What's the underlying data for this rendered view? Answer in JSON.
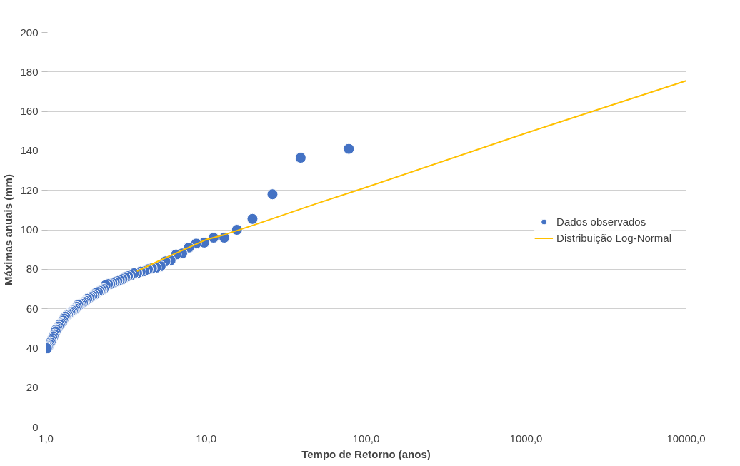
{
  "chart_data": {
    "type": "scatter",
    "xlabel": "Tempo de Retorno (anos)",
    "ylabel": "Máximas anuais (mm)",
    "log": "x",
    "xlim": [
      1,
      10000
    ],
    "xticks": [
      {
        "value": 1,
        "label": "1,0"
      },
      {
        "value": 10,
        "label": "10,0"
      },
      {
        "value": 100,
        "label": "100,0"
      },
      {
        "value": 1000,
        "label": "1000,0"
      },
      {
        "value": 10000,
        "label": "10000,0"
      }
    ],
    "ylim": [
      0,
      200
    ],
    "yticks": [
      0,
      20,
      40,
      60,
      80,
      100,
      120,
      140,
      160,
      180,
      200
    ],
    "grid": "y",
    "legend": "right",
    "marker": "circle",
    "series": [
      {
        "name": "Dados observados",
        "color": "#4472c4",
        "x": [
          78,
          39,
          26,
          19.5,
          15.6,
          13,
          11.14,
          9.75,
          8.67,
          7.8,
          7.09,
          6.5,
          6,
          5.57,
          5.2,
          4.875,
          4.59,
          4.33,
          4.11,
          3.9,
          3.71,
          3.55,
          3.39,
          3.25,
          3.12,
          3,
          2.89,
          2.79,
          2.69,
          2.6,
          2.52,
          2.44,
          2.36,
          2.29,
          2.23,
          2.17,
          2.11,
          2.05,
          2,
          1.95,
          1.9,
          1.86,
          1.81,
          1.77,
          1.73,
          1.7,
          1.66,
          1.625,
          1.59,
          1.56,
          1.53,
          1.5,
          1.47,
          1.44,
          1.42,
          1.39,
          1.37,
          1.345,
          1.32,
          1.3,
          1.28,
          1.26,
          1.24,
          1.22,
          1.2,
          1.18,
          1.16,
          1.147,
          1.13,
          1.114,
          1.1,
          1.083,
          1.068,
          1.054,
          1.04,
          1.026,
          1.013
        ],
        "values": [
          141,
          136.5,
          118,
          105.5,
          100,
          96,
          96,
          93.5,
          93,
          91,
          88,
          87.5,
          84.5,
          84,
          81.5,
          80.8,
          80.5,
          80,
          79,
          78.8,
          78,
          78,
          77,
          76.5,
          76,
          75,
          74.5,
          74,
          73.5,
          73,
          72.5,
          72.5,
          72,
          70,
          69.5,
          69,
          68.5,
          68,
          67,
          66.5,
          66,
          65.5,
          65,
          64,
          63.5,
          63,
          62.5,
          62,
          62,
          61,
          60,
          59.5,
          59,
          58.5,
          58,
          57.5,
          57,
          56.5,
          56,
          55,
          54,
          53,
          52.5,
          52,
          51,
          50,
          49.5,
          48.5,
          47,
          46,
          45,
          44,
          43,
          42,
          41,
          40.5,
          40
        ]
      },
      {
        "name": "Distribuição Log-Normal",
        "type": "line",
        "color": "#ffc000",
        "line_style": "solid",
        "marker": "none",
        "x": [
          3.7,
          5,
          10,
          13,
          20,
          50,
          100,
          1000,
          10000
        ],
        "values": [
          79,
          84,
          95,
          97.5,
          102.5,
          113.5,
          121.5,
          149,
          175.5
        ]
      }
    ]
  }
}
